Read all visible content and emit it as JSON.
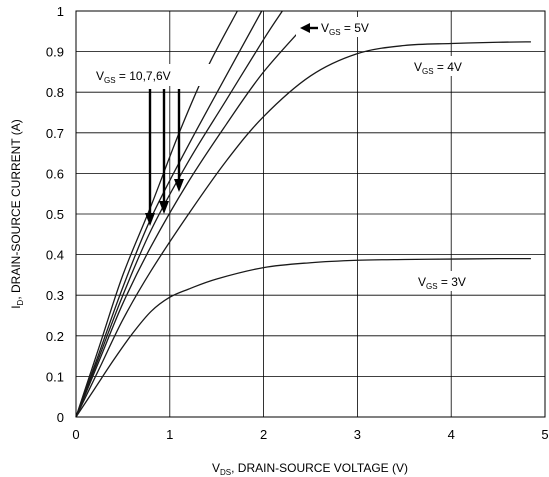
{
  "chart_data": {
    "type": "line",
    "title": "",
    "xlabel": "V",
    "xlabel_sub": "DS",
    "xlabel_rest": ", DRAIN-SOURCE VOLTAGE (V)",
    "ylabel": "I",
    "ylabel_sub": "D",
    "ylabel_rest": ", DRAIN-SOURCE CURRENT (A)",
    "xlim": [
      0,
      5
    ],
    "ylim": [
      0,
      1
    ],
    "x_ticks": [
      "0",
      "1",
      "2",
      "3",
      "4",
      "5"
    ],
    "y_ticks": [
      "0",
      "0.1",
      "0.2",
      "0.3",
      "0.4",
      "0.5",
      "0.6",
      "0.7",
      "0.8",
      "0.9",
      "1"
    ],
    "grid": true,
    "series": [
      {
        "name": "VGS = 10V",
        "x": [
          0,
          0.25,
          0.5,
          0.8,
          1.1,
          1.4,
          1.72
        ],
        "y": [
          0,
          0.175,
          0.35,
          0.52,
          0.7,
          0.86,
          1.0
        ]
      },
      {
        "name": "VGS = 7V",
        "x": [
          0,
          0.25,
          0.5,
          0.8,
          1.2,
          1.6,
          1.98
        ],
        "y": [
          0,
          0.16,
          0.32,
          0.49,
          0.67,
          0.84,
          1.0
        ]
      },
      {
        "name": "VGS = 6V",
        "x": [
          0,
          0.25,
          0.5,
          0.8,
          1.2,
          1.6,
          2.0,
          2.2
        ],
        "y": [
          0,
          0.15,
          0.3,
          0.46,
          0.63,
          0.78,
          0.93,
          1.0
        ]
      },
      {
        "name": "VGS = 5V",
        "x": [
          0,
          0.25,
          0.5,
          0.8,
          1.2,
          1.6,
          2.0,
          2.5
        ],
        "y": [
          0,
          0.14,
          0.28,
          0.42,
          0.58,
          0.72,
          0.85,
          0.98
        ]
      },
      {
        "name": "VGS = 4V",
        "x": [
          0,
          0.25,
          0.5,
          0.8,
          1.2,
          1.6,
          2.0,
          2.5,
          3.0,
          3.5,
          4.0,
          4.5,
          4.85
        ],
        "y": [
          0,
          0.12,
          0.24,
          0.36,
          0.5,
          0.63,
          0.74,
          0.84,
          0.895,
          0.915,
          0.92,
          0.923,
          0.924
        ]
      },
      {
        "name": "VGS = 3V",
        "x": [
          0,
          0.2,
          0.4,
          0.6,
          0.8,
          1.0,
          1.2,
          1.5,
          2.0,
          2.5,
          3.0,
          3.5,
          4.0,
          4.5,
          4.85
        ],
        "y": [
          0,
          0.07,
          0.14,
          0.205,
          0.26,
          0.295,
          0.315,
          0.34,
          0.368,
          0.38,
          0.386,
          0.388,
          0.389,
          0.39,
          0.39
        ]
      }
    ],
    "annotations": [
      {
        "main": "V",
        "sub": "GS",
        "rest": " = 10,7,6V"
      },
      {
        "main": "V",
        "sub": "GS",
        "rest": " = 5V"
      },
      {
        "main": "V",
        "sub": "GS",
        "rest": " = 4V"
      },
      {
        "main": "V",
        "sub": "GS",
        "rest": " = 3V"
      }
    ]
  }
}
